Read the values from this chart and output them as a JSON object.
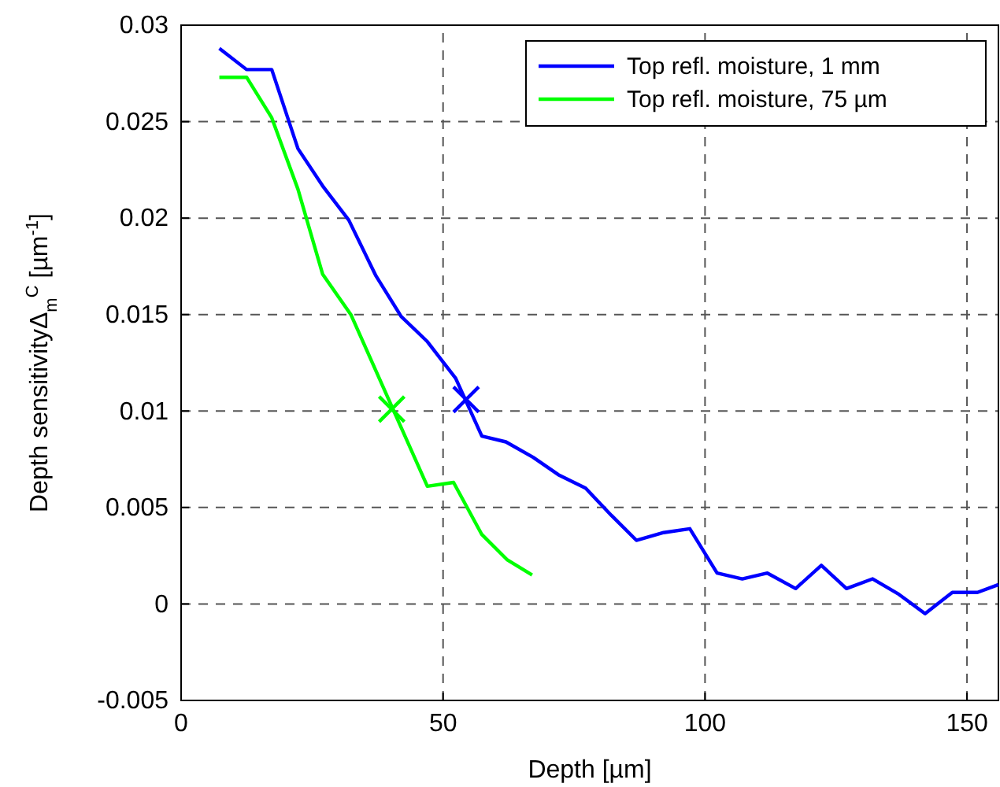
{
  "chart_data": {
    "type": "line",
    "xlabel": "Depth [µm]",
    "ylabel": "Depth sensitivityΔ$_{m}$$^{C}$ [µm$^{-1}$]",
    "xlim": [
      0,
      156
    ],
    "xticks": [
      0,
      50,
      100,
      150
    ],
    "ylim": [
      -0.005,
      0.03
    ],
    "yticks": [
      -0.005,
      0,
      0.005,
      0.01,
      0.015,
      0.02,
      0.025,
      0.03
    ],
    "grid": true,
    "legend": "top right",
    "line_style": "solid",
    "series": [
      {
        "name": "Top refl. moisture, 1 mm",
        "color": "#0000ff",
        "x": [
          7.3,
          12.5,
          17.3,
          22.3,
          27.2,
          32,
          37.2,
          42,
          47,
          52.4,
          57.4,
          62,
          67.2,
          72,
          77.2,
          82.1,
          86.9,
          92.1,
          97.1,
          102.3,
          107.1,
          111.9,
          117.3,
          122.2,
          127,
          132,
          137,
          142,
          147.2,
          152,
          156
        ],
        "values": [
          0.0288,
          0.0277,
          0.0277,
          0.0236,
          0.0216,
          0.0199,
          0.017,
          0.0149,
          0.0136,
          0.0117,
          0.0087,
          0.0084,
          0.0076,
          0.0067,
          0.006,
          0.0046,
          0.0033,
          0.0037,
          0.0039,
          0.0016,
          0.0013,
          0.0016,
          0.0008,
          0.002,
          0.0008,
          0.0013,
          0.0005,
          -0.0005,
          0.0006,
          0.0006,
          0.001
        ]
      },
      {
        "name": "Top refl. moisture, 75 µm",
        "color": "#00ff00",
        "x": [
          7.3,
          12.5,
          17.3,
          22.3,
          27,
          32.4,
          47,
          52,
          57.4,
          62.2,
          67
        ],
        "values": [
          0.0273,
          0.0273,
          0.0252,
          0.0215,
          0.0171,
          0.015,
          0.0061,
          0.0063,
          0.0036,
          0.0023,
          0.0015
        ]
      },
      {
        "type": "scatter",
        "marker": "cross",
        "color": "#0000ff",
        "x": [
          54.4
        ],
        "values": [
          0.0106
        ]
      },
      {
        "type": "scatter",
        "marker": "cross",
        "color": "#00ff00",
        "x": [
          40.2
        ],
        "values": [
          0.0101
        ]
      }
    ]
  }
}
